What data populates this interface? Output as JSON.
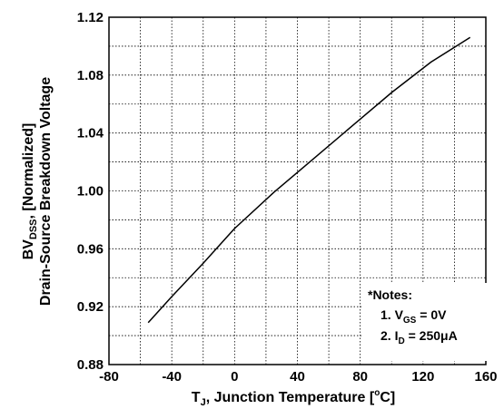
{
  "chart_data": {
    "type": "line",
    "xlabel": "T",
    "xlabel_sub": "J",
    "xlabel_rest": ", Junction Temperature [",
    "xlabel_deg": "o",
    "xlabel_unit": "C]",
    "ylabel_line1_main": "BV",
    "ylabel_line1_sub": "DSS",
    "ylabel_line1_rest": ", [Normalized]",
    "ylabel_line2": "Drain-Source Breakdown Voltage",
    "xlim": [
      -80,
      160
    ],
    "ylim": [
      0.88,
      1.12
    ],
    "x_ticks": [
      "-80",
      "-40",
      "0",
      "40",
      "80",
      "120",
      "160"
    ],
    "y_ticks": [
      "0.88",
      "0.92",
      "0.96",
      "1.00",
      "1.04",
      "1.08",
      "1.12"
    ],
    "grid": true,
    "series": [
      {
        "x": [
          -55,
          -40,
          -20,
          0,
          25,
          50,
          75,
          100,
          125,
          150
        ],
        "y": [
          0.909,
          0.927,
          0.95,
          0.974,
          0.999,
          1.022,
          1.045,
          1.068,
          1.089,
          1.106
        ]
      }
    ],
    "notes": {
      "title": "*Notes:",
      "note1_prefix": "1. V",
      "note1_sub": "GS",
      "note1_rest": " = 0V",
      "note2_prefix": "2. I",
      "note2_sub": "D",
      "note2_rest": " = 250μA"
    }
  }
}
